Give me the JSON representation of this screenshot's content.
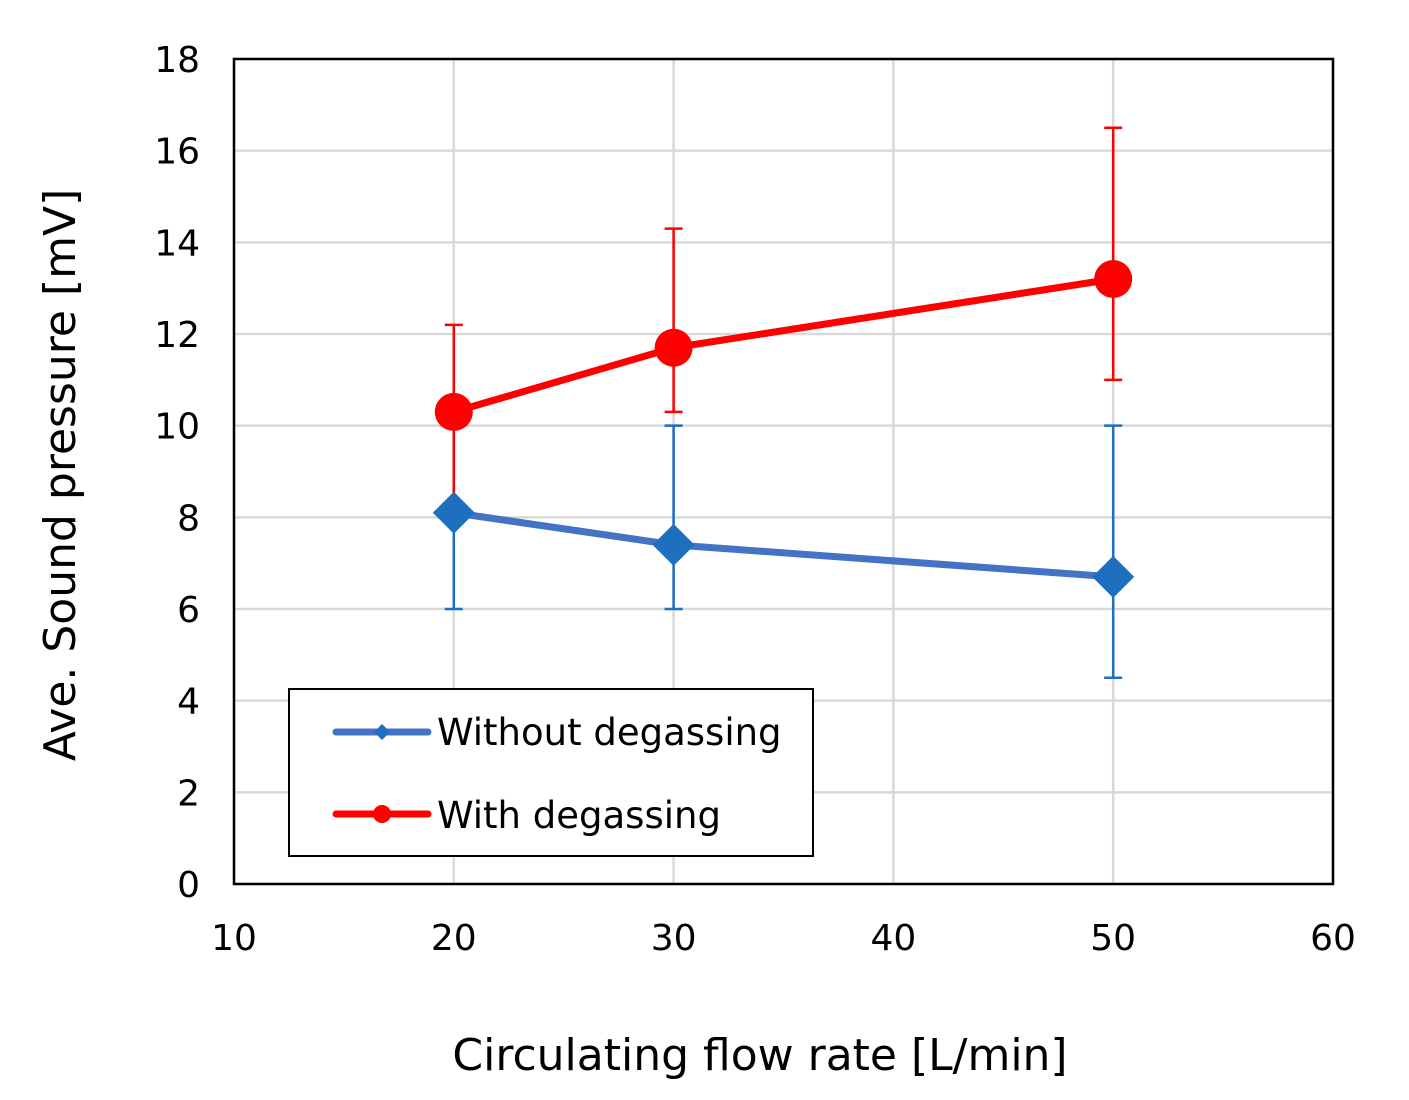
{
  "chart_data": {
    "type": "line",
    "title": "",
    "xlabel": "Circulating flow rate [L/min]",
    "ylabel": "Ave. Sound pressure [mV]",
    "xlim": [
      10,
      60
    ],
    "ylim": [
      0,
      18
    ],
    "xticks": [
      10,
      20,
      30,
      40,
      50,
      60
    ],
    "yticks": [
      0,
      2,
      4,
      6,
      8,
      10,
      12,
      14,
      16,
      18
    ],
    "grid": true,
    "legend_position": "bottom-left",
    "series": [
      {
        "name": "Without degassing",
        "color": "#1f6fc0",
        "line_color": "#4472c4",
        "marker": "diamond",
        "x": [
          20,
          30,
          50
        ],
        "y": [
          8.1,
          7.4,
          6.7
        ],
        "error_low": [
          6.0,
          6.0,
          4.5
        ],
        "error_high": [
          10.0,
          10.0,
          10.0
        ]
      },
      {
        "name": "With degassing",
        "color": "#ff0000",
        "line_color": "#ff0000",
        "marker": "circle",
        "x": [
          20,
          30,
          50
        ],
        "y": [
          10.3,
          11.7,
          13.2
        ],
        "error_low": [
          8.3,
          10.3,
          11.0
        ],
        "error_high": [
          12.2,
          14.3,
          16.5
        ]
      }
    ]
  }
}
